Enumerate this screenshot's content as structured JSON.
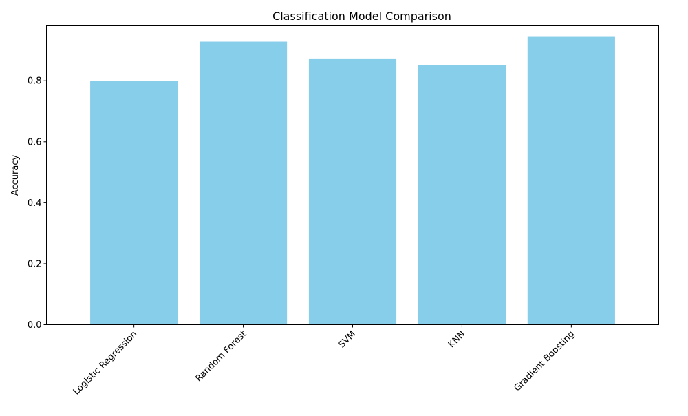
{
  "chart_data": {
    "type": "bar",
    "title": "Classification Model Comparison",
    "xlabel": "",
    "ylabel": "Accuracy",
    "categories": [
      "Logistic Regression",
      "Random Forest",
      "SVM",
      "KNN",
      "Gradient Boosting"
    ],
    "values": [
      0.8,
      0.928,
      0.873,
      0.852,
      0.946
    ],
    "ylim": [
      0,
      0.98
    ],
    "yticks": [
      0.0,
      0.2,
      0.4,
      0.6,
      0.8
    ],
    "ytick_labels": [
      "0.0",
      "0.2",
      "0.4",
      "0.6",
      "0.8"
    ],
    "bar_color": "#87ceeb",
    "grid": false,
    "legend": "none",
    "xtick_rotation_deg": 45
  }
}
